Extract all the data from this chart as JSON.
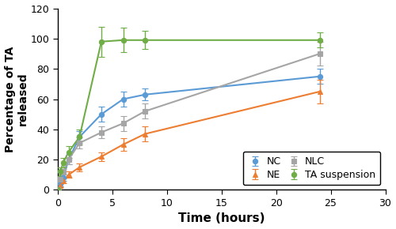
{
  "title": "",
  "xlabel": "Time (hours)",
  "ylabel": "Percentage of TA\nreleased",
  "xlim": [
    0,
    30
  ],
  "ylim": [
    0,
    120
  ],
  "xticks": [
    0,
    5,
    10,
    15,
    20,
    25,
    30
  ],
  "yticks": [
    0,
    20,
    40,
    60,
    80,
    100,
    120
  ],
  "series": {
    "NC": {
      "color": "#5b9bd5",
      "marker": "o",
      "x": [
        0,
        0.25,
        0.5,
        1,
        2,
        4,
        6,
        8,
        24
      ],
      "y": [
        0,
        4,
        8,
        20,
        35,
        50,
        60,
        63,
        75
      ],
      "yerr": [
        0,
        1.5,
        2,
        3,
        4,
        5,
        5,
        4,
        5
      ]
    },
    "NE": {
      "color": "#ed7d31",
      "marker": "^",
      "x": [
        0,
        0.25,
        0.5,
        1,
        2,
        4,
        6,
        8,
        24
      ],
      "y": [
        0,
        3,
        6,
        10,
        15,
        22,
        30,
        37,
        65
      ],
      "yerr": [
        0,
        1,
        1.5,
        2,
        2.5,
        3,
        4,
        5,
        8
      ]
    },
    "NLC": {
      "color": "#a5a5a5",
      "marker": "s",
      "x": [
        0,
        0.25,
        0.5,
        1,
        2,
        4,
        6,
        8,
        24
      ],
      "y": [
        0,
        7,
        12,
        20,
        31,
        38,
        44,
        52,
        90
      ],
      "yerr": [
        0,
        2,
        2,
        3,
        3.5,
        4,
        5,
        5,
        8
      ]
    },
    "TA suspension": {
      "color": "#70ad47",
      "marker": "o",
      "x": [
        0,
        0.25,
        0.5,
        1,
        2,
        4,
        6,
        8,
        24
      ],
      "y": [
        0,
        12,
        18,
        25,
        35,
        98,
        99,
        99,
        99
      ],
      "yerr": [
        0,
        3,
        3,
        4,
        5,
        10,
        8,
        6,
        5
      ]
    }
  },
  "legend_order": [
    "NC",
    "NE",
    "NLC",
    "TA suspension"
  ],
  "legend_loc": "lower right",
  "background_color": "#ffffff"
}
